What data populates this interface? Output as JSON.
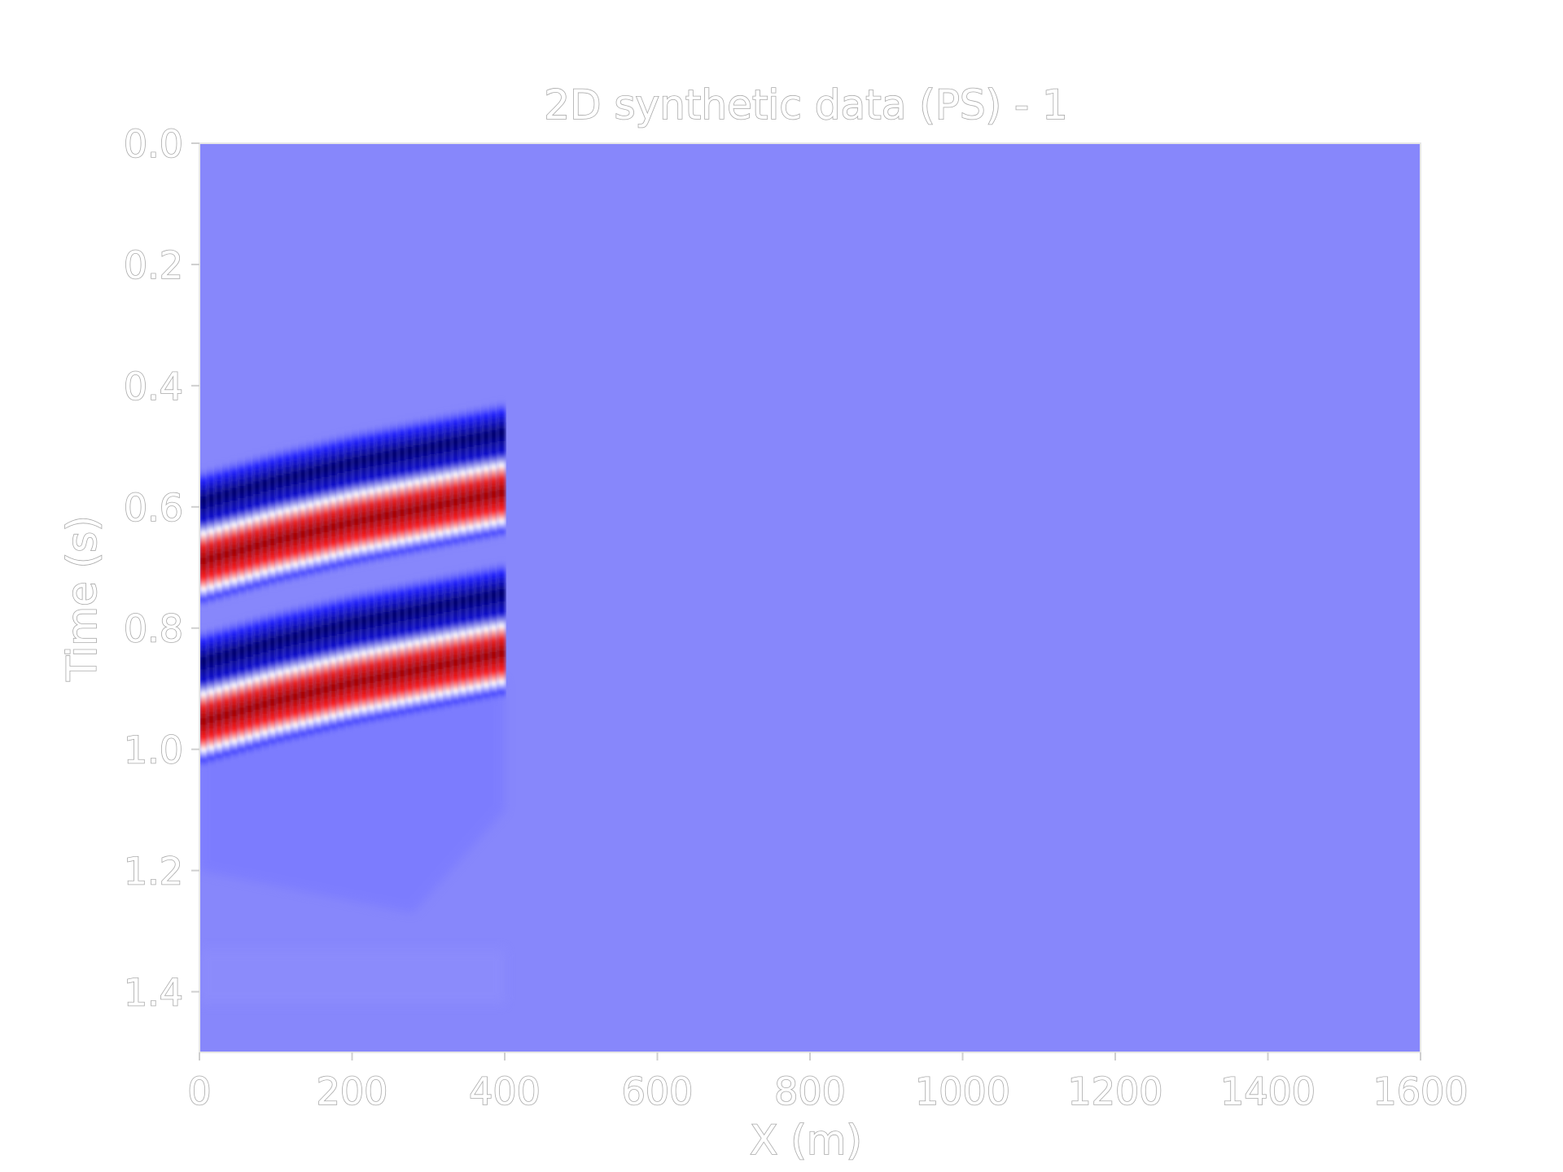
{
  "chart_data": {
    "type": "heatmap",
    "title": "2D synthetic data (PS) - 1",
    "xlabel": "X (m)",
    "ylabel": "Time (s)",
    "xlim": [
      0,
      1600
    ],
    "ylim": [
      1.5,
      0.0
    ],
    "y_inverted": true,
    "colormap": "seismic",
    "xticks": [
      "0",
      "200",
      "400",
      "600",
      "800",
      "1000",
      "1200",
      "1400",
      "1600"
    ],
    "yticks": [
      "0.0",
      "0.2",
      "0.4",
      "0.6",
      "0.8",
      "1.0",
      "1.2",
      "1.4"
    ],
    "data_extent_x": [
      0,
      400
    ],
    "background_color": "#8787fb",
    "events": [
      {
        "x": [
          0,
          100,
          200,
          300,
          400
        ],
        "time_trough": [
          0.63,
          0.595,
          0.565,
          0.54,
          0.515
        ],
        "time_peak": [
          0.675,
          0.64,
          0.61,
          0.585,
          0.56
        ]
      },
      {
        "x": [
          0,
          100,
          200,
          300,
          400
        ],
        "time_trough": [
          0.895,
          0.86,
          0.83,
          0.805,
          0.78
        ],
        "time_peak": [
          0.94,
          0.905,
          0.875,
          0.85,
          0.825
        ]
      }
    ]
  }
}
